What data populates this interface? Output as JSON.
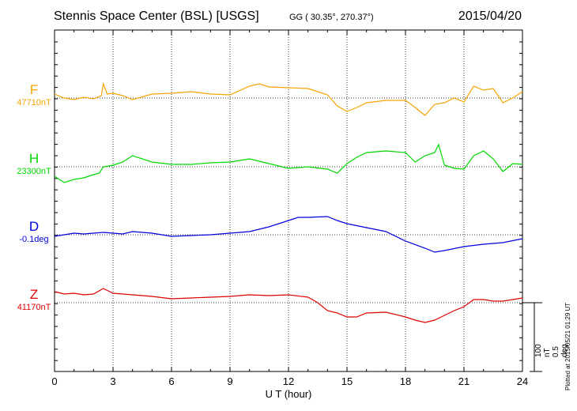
{
  "header": {
    "title": "Stennis Space Center (BSL)  [USGS]",
    "coords": "GG ( 30.35°, 270.37°)",
    "date": "2015/04/20"
  },
  "footer": {
    "plotted": "Plotted at 2015/05/21 01:29 UT",
    "scale_nt": "100 nT",
    "scale_deg": "0.5 deg"
  },
  "colors": {
    "F": "#f5a400",
    "H": "#00d800",
    "D": "#0000dd",
    "Z": "#dd0000"
  },
  "chart_data": {
    "type": "line",
    "title": "Stennis Space Center (BSL)  [USGS]",
    "xlabel": "U T (hour)",
    "xlim": [
      0,
      24
    ],
    "xticks": [
      "0",
      "3",
      "6",
      "9",
      "12",
      "15",
      "18",
      "21",
      "24"
    ],
    "grid": true,
    "scale_note": "100 nT / 0.5 deg per bar",
    "series": [
      {
        "name": "F",
        "baseline_label": "47710nT",
        "x": [
          0,
          0.5,
          1,
          1.5,
          2,
          2.4,
          2.5,
          2.7,
          3,
          3.5,
          4,
          5,
          6,
          7,
          8,
          9,
          10,
          10.5,
          11,
          12,
          13,
          14,
          14.5,
          15,
          15.5,
          16,
          17,
          18,
          18.5,
          19,
          19.5,
          20,
          20.5,
          21,
          21.5,
          22,
          22.5,
          23,
          23.5,
          24
        ],
        "values": [
          5,
          0,
          -2,
          1,
          -1,
          3,
          18,
          5,
          6,
          3,
          -2,
          5,
          6,
          8,
          5,
          4,
          15,
          18,
          14,
          13,
          12,
          4,
          -10,
          -17,
          -12,
          -6,
          -3,
          -3,
          -12,
          -22,
          -8,
          -6,
          0,
          -5,
          15,
          10,
          12,
          -6,
          0,
          8
        ]
      },
      {
        "name": "H",
        "baseline_label": "23300nT",
        "x": [
          0,
          0.5,
          1,
          1.5,
          2,
          2.3,
          2.5,
          3,
          3.5,
          4,
          5,
          6,
          7,
          8,
          9,
          10,
          10.5,
          11,
          12,
          13,
          14,
          14.5,
          15,
          15.5,
          16,
          17,
          18,
          18.5,
          19,
          19.5,
          19.7,
          20,
          20.5,
          21,
          21.5,
          22,
          22.5,
          23,
          23.5,
          24
        ],
        "values": [
          -12,
          -20,
          -16,
          -14,
          -10,
          -8,
          0,
          2,
          6,
          14,
          6,
          3,
          3,
          5,
          6,
          10,
          7,
          4,
          -2,
          0,
          -3,
          -8,
          4,
          12,
          18,
          20,
          18,
          6,
          14,
          18,
          28,
          2,
          -2,
          -3,
          14,
          20,
          10,
          -6,
          4,
          3
        ]
      },
      {
        "name": "D",
        "baseline_label": "-0.1deg",
        "x": [
          0,
          0.5,
          1,
          1.5,
          2,
          2.5,
          3,
          3.5,
          4,
          4.5,
          5,
          6,
          7,
          8,
          9,
          10,
          11,
          12,
          12.5,
          13,
          14,
          14.5,
          15,
          16,
          17,
          18,
          19,
          19.5,
          20,
          21,
          22,
          23,
          24
        ],
        "values": [
          -2,
          0,
          2,
          1,
          2,
          3,
          2,
          1,
          4,
          3,
          2,
          -2,
          -1,
          0,
          2,
          4,
          10,
          18,
          22,
          22,
          23,
          18,
          14,
          9,
          4,
          -8,
          -17,
          -22,
          -20,
          -15,
          -12,
          -10,
          -5
        ]
      },
      {
        "name": "Z",
        "baseline_label": "41170nT",
        "x": [
          0,
          0.5,
          1,
          1.5,
          2,
          2.5,
          3,
          4,
          5,
          6,
          7,
          8,
          9,
          10,
          11,
          12,
          13,
          13.5,
          14,
          14.5,
          15,
          15.5,
          16,
          17,
          18,
          18.5,
          19,
          19.5,
          20,
          20.5,
          21,
          21.5,
          22,
          22.5,
          23,
          23.5,
          24
        ],
        "values": [
          14,
          11,
          12,
          10,
          11,
          18,
          12,
          10,
          8,
          5,
          6,
          7,
          8,
          10,
          9,
          10,
          7,
          0,
          -10,
          -13,
          -18,
          -18,
          -13,
          -12,
          -18,
          -22,
          -25,
          -22,
          -16,
          -10,
          -5,
          4,
          4,
          2,
          2,
          4,
          6
        ]
      }
    ]
  }
}
